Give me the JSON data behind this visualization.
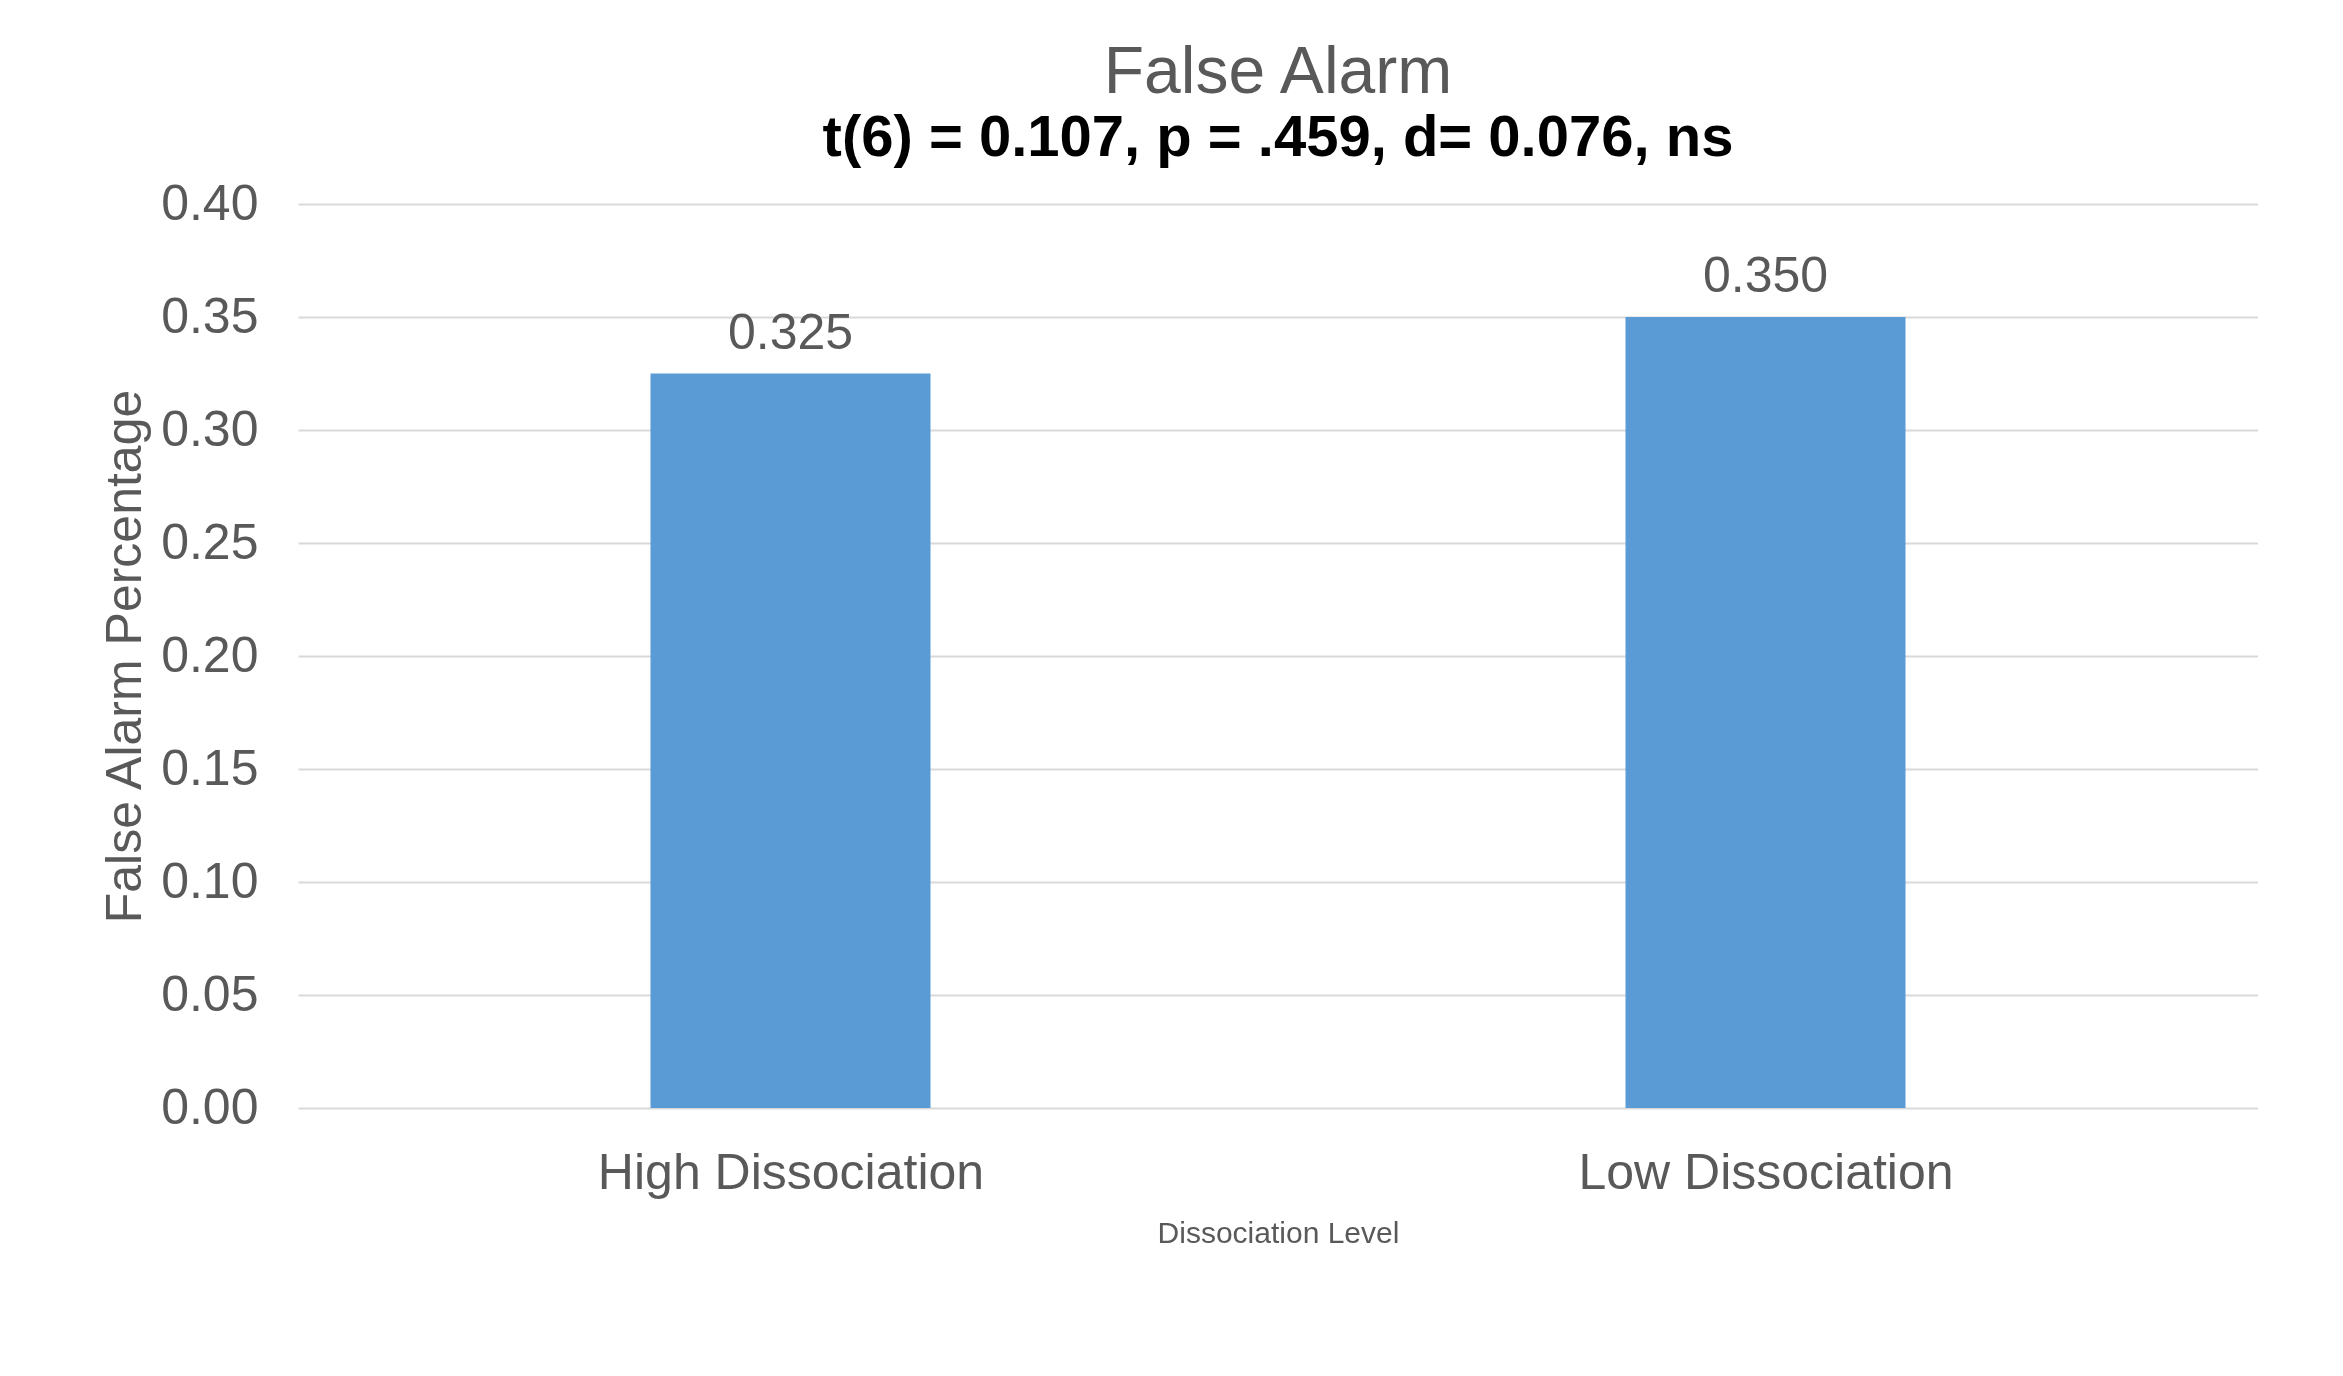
{
  "chart_data": {
    "type": "bar",
    "title": "False Alarm",
    "subtitle": "t(6) = 0.107, p = .459, d= 0.076, ns",
    "xlabel": "Dissociation Level",
    "ylabel": "False Alarm Percentage",
    "categories": [
      "High Dissociation",
      "Low Dissociation"
    ],
    "series": [
      {
        "color": "#5b9bd5",
        "values": [
          0.325,
          0.35
        ],
        "value_labels": [
          "0.325",
          "0.350"
        ]
      }
    ],
    "ylim": [
      0,
      0.4
    ],
    "yticks": [
      {
        "value": 0,
        "label": "0.00"
      },
      {
        "value": 0.05,
        "label": "0.05"
      },
      {
        "value": 0.1,
        "label": "0.10"
      },
      {
        "value": 0.15,
        "label": "0.15"
      },
      {
        "value": 0.2,
        "label": "0.20"
      },
      {
        "value": 0.25,
        "label": "0.25"
      },
      {
        "value": 0.3,
        "label": "0.30"
      },
      {
        "value": 0.35,
        "label": "0.35"
      },
      {
        "value": 0.4,
        "label": "0.40"
      }
    ],
    "grid": "y"
  }
}
